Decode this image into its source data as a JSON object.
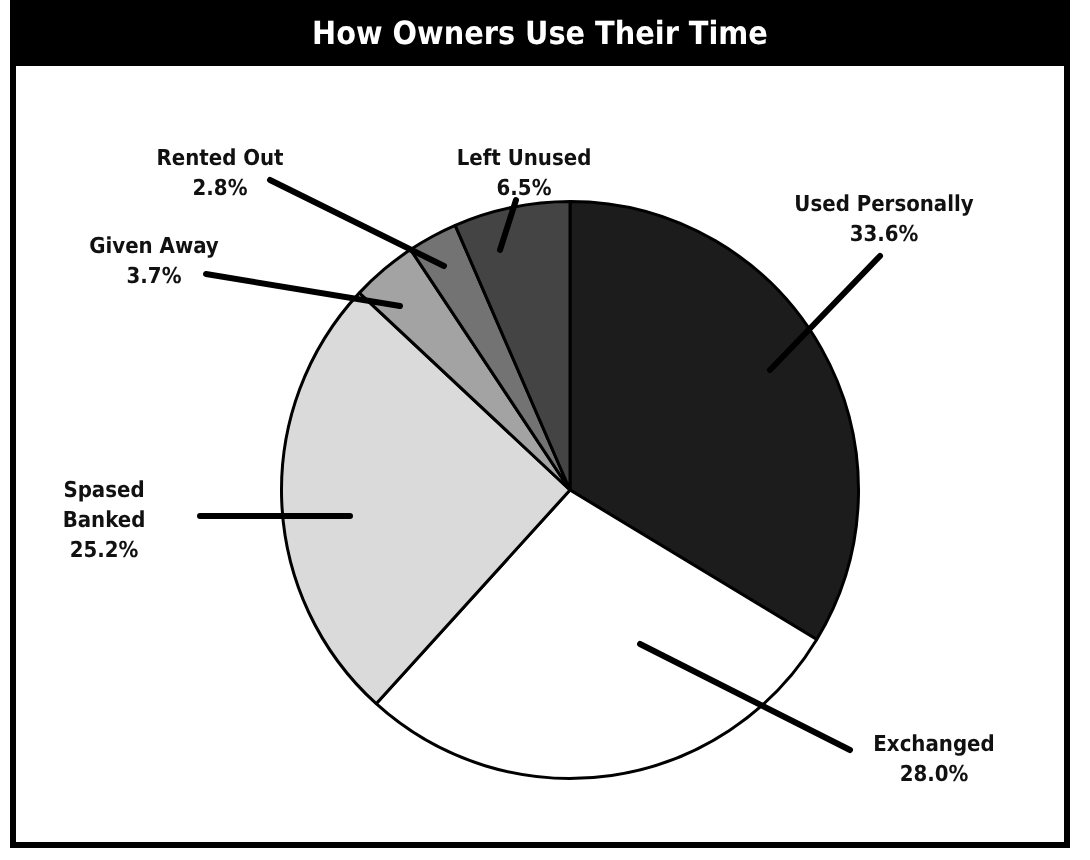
{
  "chart_data": {
    "type": "pie",
    "title": "How Owners Use Their Time",
    "categories": [
      "Used Personally",
      "Exchanged",
      "Spased Banked",
      "Given Away",
      "Rented Out",
      "Left Unused"
    ],
    "values": [
      33.6,
      28.0,
      25.2,
      3.7,
      2.8,
      6.5
    ],
    "value_labels": [
      "33.6%",
      "28.0%",
      "25.2%",
      "3.7%",
      "2.8%",
      "6.5%"
    ],
    "colors": [
      "#1c1c1c",
      "#ffffff",
      "#dadada",
      "#a3a3a3",
      "#737373",
      "#444444"
    ],
    "legend": false
  }
}
